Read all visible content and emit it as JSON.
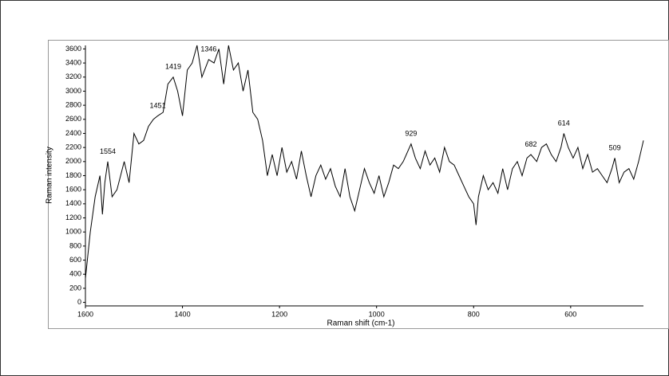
{
  "chart_data": {
    "type": "line",
    "xlabel": "Raman shift (cm-1)",
    "ylabel": "Raman intensity",
    "color": "#000000",
    "xlim": [
      1600,
      450
    ],
    "ylim": [
      -50,
      3650
    ],
    "xticks": [
      1600,
      1400,
      1200,
      1000,
      800,
      600
    ],
    "yticks": [
      0,
      200,
      400,
      600,
      800,
      1000,
      1200,
      1400,
      1600,
      1800,
      2000,
      2200,
      2400,
      2600,
      2800,
      3000,
      3200,
      3400,
      3600
    ],
    "grid": false,
    "x": [
      1600,
      1590,
      1580,
      1570,
      1565,
      1560,
      1554,
      1545,
      1535,
      1520,
      1510,
      1500,
      1490,
      1480,
      1470,
      1460,
      1451,
      1440,
      1430,
      1419,
      1410,
      1400,
      1390,
      1380,
      1370,
      1360,
      1346,
      1335,
      1325,
      1315,
      1305,
      1295,
      1285,
      1275,
      1265,
      1255,
      1245,
      1235,
      1225,
      1215,
      1205,
      1195,
      1185,
      1175,
      1165,
      1155,
      1145,
      1135,
      1125,
      1115,
      1105,
      1095,
      1085,
      1075,
      1065,
      1055,
      1045,
      1035,
      1025,
      1015,
      1005,
      995,
      985,
      975,
      965,
      955,
      945,
      929,
      920,
      910,
      900,
      890,
      880,
      870,
      860,
      850,
      840,
      830,
      820,
      810,
      800,
      795,
      790,
      780,
      770,
      760,
      750,
      740,
      730,
      720,
      710,
      700,
      690,
      682,
      670,
      660,
      650,
      640,
      630,
      620,
      614,
      605,
      595,
      585,
      575,
      565,
      555,
      545,
      535,
      525,
      515,
      509,
      500,
      490,
      480,
      470,
      460,
      450
    ],
    "values": [
      340,
      1000,
      1500,
      1800,
      1250,
      1700,
      2000,
      1500,
      1600,
      2000,
      1700,
      2400,
      2250,
      2300,
      2500,
      2600,
      2650,
      2700,
      3100,
      3200,
      3000,
      2650,
      3300,
      3400,
      3650,
      3200,
      3450,
      3400,
      3600,
      3100,
      3650,
      3300,
      3400,
      3000,
      3300,
      2700,
      2600,
      2300,
      1800,
      2100,
      1800,
      2200,
      1850,
      2000,
      1750,
      2150,
      1800,
      1500,
      1800,
      1950,
      1750,
      1900,
      1650,
      1500,
      1900,
      1500,
      1300,
      1600,
      1900,
      1700,
      1550,
      1800,
      1500,
      1700,
      1950,
      1900,
      2000,
      2250,
      2050,
      1900,
      2150,
      1950,
      2050,
      1850,
      2200,
      2000,
      1950,
      1800,
      1650,
      1500,
      1400,
      1100,
      1500,
      1800,
      1600,
      1700,
      1550,
      1900,
      1600,
      1900,
      2000,
      1800,
      2050,
      2100,
      2000,
      2200,
      2250,
      2100,
      2000,
      2200,
      2400,
      2200,
      2050,
      2200,
      1900,
      2100,
      1850,
      1900,
      1800,
      1700,
      1900,
      2050,
      1700,
      1850,
      1900,
      1750,
      2000,
      2300
    ],
    "annotations": [
      {
        "x": 1554,
        "y": 2050
      },
      {
        "x": 1451,
        "y": 2700
      },
      {
        "x": 1419,
        "y": 3250
      },
      {
        "x": 1346,
        "y": 3500
      },
      {
        "x": 929,
        "y": 2300
      },
      {
        "x": 682,
        "y": 2150
      },
      {
        "x": 614,
        "y": 2450
      },
      {
        "x": 509,
        "y": 2100
      }
    ]
  }
}
